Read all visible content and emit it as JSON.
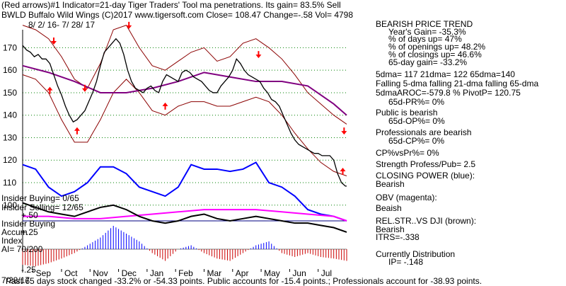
{
  "header": {
    "line1": "(Red arrows)#1 Indicator=21-day Tiger Traders' Tool ma penetrations. Its gain= 83.5% Sell",
    "line2": "BWLD  Buffalo Wild Wings  (C)2017 www.tigersoft.com     Close=  108.47  Change=-.58 Vol= 4798",
    "date_range": "8/ 2/ 16-  7/ 28/ 17"
  },
  "sidebar": [
    "BEARISH PRICE TREND",
    "Year's Gain= -35.3%",
    "% of days up= 47%",
    "% of openings up= 48.2%",
    "% of closings up= 46.6%",
    "65-day gain= -33.2%",
    "5dma= 117 21dma= 122 65dma=140",
    "Falling 5-dma  falling 21-dma  falling 65-dma",
    "5dmaAROC=-579.8 %  PivotP= 120.75",
    "65d-PR%= 0%",
    "Public is bearish",
    "65d-OP%= 0%",
    "Professionals are bearish",
    "65d-CP%= 0%",
    "CP%vsPr%=  0%",
    "Strength Profess/Pub= 2.5",
    "CLOSING POWER (blue):",
    "Bearish",
    "OBV (magenta):",
    "Beaish",
    "REL.STR..VS DJI (brown):",
    "Bearish",
    "ITRS=-.338",
    "Currently Distribution",
    "IP= -.148"
  ],
  "lower_labels": {
    "insider_buying_top": "Insider Buying= 0/65",
    "insider_selling": "Insider Selling= 12/65",
    "plus50": "+.50",
    "insider_buying": "Insider Buying",
    "accum": "Accum",
    "plus25": "+.25",
    "index": "Index",
    "ai": "AI= 70/200",
    "minus25": "-.25",
    "date_label": "7/28/17"
  },
  "footer": "Past 65 days stock changed -33.2% or -54.33 points.  Public accounts for -15.4 points.;  Professionals account for -38.93 points.",
  "colors": {
    "price": "#000000",
    "bands": "#8b0000",
    "ma65": "#800080",
    "closing_power": "#0000ff",
    "obv": "#ff00ff",
    "rel_str": "#000000",
    "arrows": "#ff0000",
    "accum_pos": "#0000ff",
    "accum_neg": "#cc0000",
    "grid": "#008000"
  },
  "chart_data": {
    "type": "line",
    "y_ticks": [
      170,
      160,
      150,
      140,
      130,
      120,
      110,
      100
    ],
    "ylim": [
      93,
      178
    ],
    "x_ticks": [
      "Sep",
      "Oct",
      "Nov",
      "Dec",
      "Jan",
      "Feb",
      "Mar",
      "Apr",
      "May",
      "Jun",
      "Jul"
    ],
    "price": {
      "x": [
        0,
        3,
        6,
        9,
        12,
        15,
        18,
        21,
        24,
        27,
        30,
        33,
        36,
        39,
        42,
        45,
        48,
        51,
        54,
        57,
        60,
        63,
        66,
        69,
        72,
        75,
        78,
        81,
        84,
        87,
        90,
        93,
        96,
        99,
        102,
        105,
        108,
        111,
        114,
        117,
        120,
        123,
        126,
        129,
        132,
        135,
        138,
        141,
        144,
        147,
        150,
        153,
        156,
        159,
        162,
        165,
        168,
        171,
        174,
        177,
        180,
        183,
        186,
        189,
        192,
        195,
        198,
        201,
        204,
        207,
        210,
        213,
        216,
        219,
        222,
        225,
        228,
        231,
        234,
        237,
        240,
        243,
        246,
        249,
        250
      ],
      "close": [
        171,
        169,
        168,
        166,
        167,
        165,
        165,
        163,
        158,
        153,
        149,
        144,
        140,
        137,
        138,
        140,
        142,
        146,
        150,
        155,
        162,
        168,
        170,
        172,
        174,
        172,
        167,
        160,
        155,
        152,
        151,
        150,
        152,
        153,
        151,
        150,
        155,
        158,
        157,
        156,
        155,
        159,
        160,
        159,
        157,
        156,
        155,
        153,
        151,
        150,
        150,
        153,
        155,
        157,
        160,
        165,
        163,
        160,
        158,
        157,
        156,
        155,
        152,
        150,
        147,
        146,
        144,
        140,
        136,
        132,
        129,
        127,
        126,
        125,
        124,
        123,
        123,
        122,
        122,
        122,
        120,
        114,
        110,
        108.47,
        108.47
      ]
    },
    "ma65": {
      "x": [
        0,
        20,
        40,
        60,
        80,
        100,
        120,
        140,
        160,
        180,
        200,
        220,
        240,
        250
      ],
      "y": [
        162,
        159,
        155,
        150,
        150,
        152,
        155,
        159,
        157,
        155,
        155,
        153,
        145,
        140
      ]
    },
    "upper_band": {
      "x": [
        0,
        10,
        20,
        30,
        40,
        50,
        60,
        70,
        80,
        90,
        100,
        110,
        120,
        130,
        140,
        150,
        160,
        170,
        180,
        190,
        200,
        210,
        220,
        230,
        240,
        250
      ],
      "y": [
        180,
        178,
        174,
        166,
        156,
        152,
        163,
        178,
        180,
        170,
        162,
        160,
        164,
        168,
        170,
        164,
        166,
        172,
        174,
        170,
        165,
        158,
        150,
        145,
        140,
        136
      ]
    },
    "lower_band": {
      "x": [
        0,
        10,
        20,
        30,
        40,
        50,
        60,
        70,
        80,
        90,
        100,
        110,
        120,
        130,
        140,
        150,
        160,
        170,
        180,
        190,
        200,
        210,
        220,
        230,
        240,
        250
      ],
      "y": [
        158,
        156,
        150,
        138,
        128,
        128,
        138,
        150,
        156,
        150,
        142,
        140,
        144,
        146,
        146,
        144,
        144,
        146,
        148,
        146,
        140,
        132,
        125,
        119,
        115,
        113
      ]
    },
    "closing_power": {
      "x": [
        0,
        10,
        20,
        30,
        40,
        50,
        60,
        70,
        80,
        90,
        100,
        110,
        120,
        130,
        140,
        150,
        160,
        170,
        180,
        190,
        200,
        210,
        220,
        230,
        240,
        250
      ],
      "y": [
        118,
        116,
        108,
        104,
        106,
        110,
        117,
        117,
        114,
        108,
        106,
        104,
        108,
        118,
        116,
        116,
        115,
        116,
        119,
        110,
        108,
        104,
        98,
        96,
        95,
        93
      ]
    },
    "obv": {
      "x": [
        0,
        20,
        40,
        60,
        80,
        100,
        120,
        140,
        160,
        180,
        200,
        220,
        240,
        250
      ],
      "y": [
        95,
        95,
        94,
        94,
        95,
        96,
        97,
        98,
        98,
        98,
        97,
        96,
        95,
        93
      ]
    },
    "rel_str": {
      "x": [
        0,
        10,
        20,
        30,
        40,
        50,
        60,
        70,
        80,
        90,
        100,
        110,
        120,
        130,
        140,
        150,
        160,
        170,
        180,
        190,
        200,
        210,
        220,
        230,
        240,
        250
      ],
      "y": [
        101,
        99,
        97,
        96,
        95,
        97,
        99,
        100,
        98,
        95,
        93,
        92,
        93,
        95,
        96,
        94,
        93,
        94,
        95,
        94,
        93,
        92,
        92,
        91,
        90,
        88
      ]
    },
    "accum_index": {
      "x": [
        0,
        10,
        20,
        30,
        40,
        50,
        60,
        70,
        80,
        90,
        100,
        110,
        120,
        130,
        140,
        150,
        160,
        170,
        180,
        190,
        200,
        210,
        220,
        230,
        240,
        250
      ],
      "y": [
        -0.2,
        -0.22,
        -0.18,
        -0.12,
        -0.05,
        0.05,
        0.15,
        0.3,
        0.2,
        0.1,
        -0.05,
        -0.15,
        0.0,
        0.05,
        -0.05,
        -0.12,
        -0.15,
        -0.05,
        0.05,
        0.1,
        -0.05,
        -0.1,
        -0.05,
        -0.1,
        -0.12,
        -0.15
      ]
    },
    "red_arrows": [
      {
        "x": 24,
        "dir": "down",
        "y": 172
      },
      {
        "x": 21,
        "dir": "up",
        "y": 152
      },
      {
        "x": 48,
        "dir": "down",
        "y": 151
      },
      {
        "x": 42,
        "dir": "up",
        "y": 134
      },
      {
        "x": 82,
        "dir": "down",
        "y": 179
      },
      {
        "x": 110,
        "dir": "up",
        "y": 145
      },
      {
        "x": 182,
        "dir": "down",
        "y": 166
      },
      {
        "x": 248,
        "dir": "down",
        "y": 132
      },
      {
        "x": 247,
        "dir": "up",
        "y": 116
      }
    ]
  }
}
